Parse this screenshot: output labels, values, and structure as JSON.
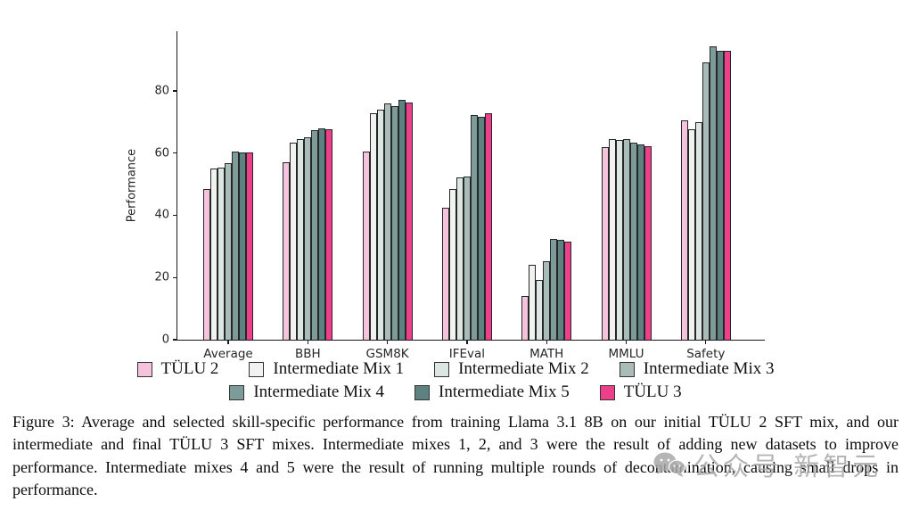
{
  "figure": {
    "caption": "Figure 3: Average and selected skill-specific performance from training Llama 3.1 8B on our initial TÜLU 2 SFT mix, and our intermediate and final TÜLU 3 SFT mixes. Intermediate mixes 1, 2, and 3 were the result of adding new datasets to improve performance. Intermediate mixes 4 and 5 were the result of running multiple rounds of decontamination, causing small drops in performance."
  },
  "watermark": {
    "icon": "wechat-icon",
    "text": "公众号·新智元"
  },
  "chart_data": {
    "type": "bar",
    "title": "",
    "xlabel": "",
    "ylabel": "Performance",
    "ylim": [
      0,
      99.2
    ],
    "yticks": [
      0,
      20,
      40,
      60,
      80
    ],
    "grid": false,
    "legend_position": "bottom",
    "categories": [
      "Average",
      "BBH",
      "GSM8K",
      "IFEval",
      "MATH",
      "MMLU",
      "Safety"
    ],
    "series": [
      {
        "name": "TÜLU 2",
        "color": "#f6c3dc",
        "values": [
          48.5,
          57.0,
          60.5,
          42.4,
          14.0,
          61.8,
          70.5
        ]
      },
      {
        "name": "Intermediate Mix 1",
        "color": "#f0f3f0",
        "values": [
          55.0,
          63.3,
          72.7,
          48.4,
          24.1,
          64.6,
          67.8
        ]
      },
      {
        "name": "Intermediate Mix 2",
        "color": "#dce6e2",
        "values": [
          55.3,
          64.4,
          74.0,
          52.2,
          19.2,
          64.2,
          70.0
        ]
      },
      {
        "name": "Intermediate Mix 3",
        "color": "#a9bcb8",
        "values": [
          56.8,
          65.0,
          76.0,
          52.6,
          25.1,
          64.4,
          89.2
        ]
      },
      {
        "name": "Intermediate Mix 4",
        "color": "#7d9b99",
        "values": [
          60.4,
          67.4,
          75.2,
          72.2,
          32.3,
          63.4,
          94.4
        ]
      },
      {
        "name": "Intermediate Mix 5",
        "color": "#5e8182",
        "values": [
          60.1,
          67.9,
          77.0,
          71.7,
          32.1,
          62.9,
          93.0
        ]
      },
      {
        "name": "TÜLU 3",
        "color": "#ee3f8b",
        "values": [
          60.1,
          67.6,
          76.2,
          72.8,
          31.5,
          62.1,
          92.8
        ]
      }
    ],
    "legend_rows": [
      [
        0,
        1,
        2,
        3
      ],
      [
        4,
        5,
        6
      ]
    ]
  }
}
